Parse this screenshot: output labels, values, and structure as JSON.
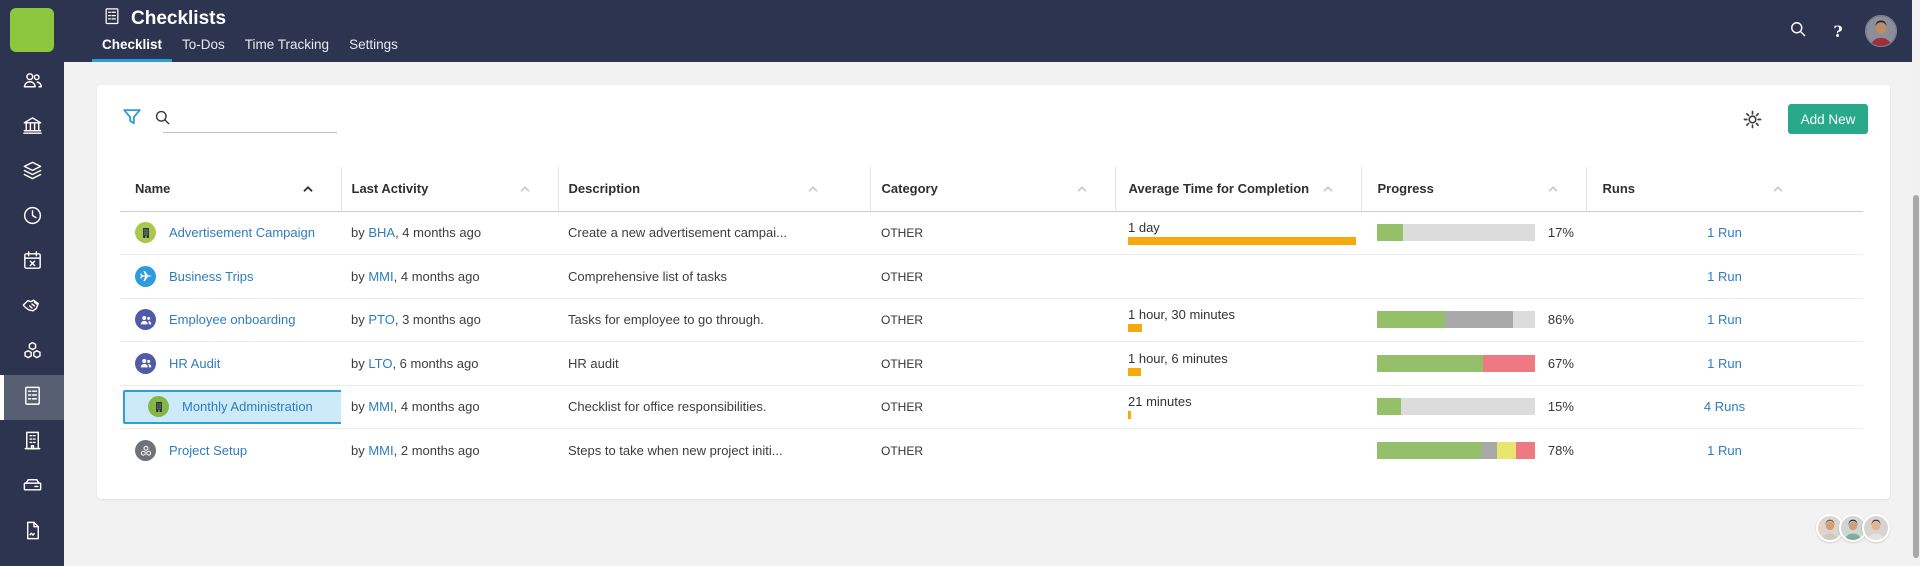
{
  "header": {
    "title": "Checklists",
    "title_icon": "checklists",
    "tabs": [
      {
        "label": "Checklist",
        "active": true
      },
      {
        "label": "To-Dos",
        "active": false
      },
      {
        "label": "Time Tracking",
        "active": false
      },
      {
        "label": "Settings",
        "active": false
      }
    ],
    "action_icons": [
      "search-icon",
      "help-icon",
      "user-avatar"
    ]
  },
  "sidebar": {
    "logo_icon": "sunrise-logo",
    "items": [
      {
        "icon": "users",
        "active": false
      },
      {
        "icon": "bank",
        "active": false
      },
      {
        "icon": "layers",
        "active": false
      },
      {
        "icon": "clock",
        "active": false
      },
      {
        "icon": "calendar-x",
        "active": false
      },
      {
        "icon": "handshake",
        "active": false
      },
      {
        "icon": "cubes",
        "active": false
      },
      {
        "icon": "checklists",
        "active": true
      },
      {
        "icon": "building",
        "active": false
      },
      {
        "icon": "drive",
        "active": false
      },
      {
        "icon": "document",
        "active": false
      }
    ]
  },
  "toolbar": {
    "filter_icon": "filter",
    "search_value": "",
    "search_placeholder": "",
    "settings_icon": "gear",
    "add_new_label": "Add New"
  },
  "table": {
    "columns": [
      {
        "label": "Name",
        "sorted": true
      },
      {
        "label": "Last Activity",
        "sorted": false
      },
      {
        "label": "Description",
        "sorted": false
      },
      {
        "label": "Category",
        "sorted": false
      },
      {
        "label": "Average Time for Completion",
        "sorted": false
      },
      {
        "label": "Progress",
        "sorted": false
      },
      {
        "label": "Runs",
        "sorted": false
      }
    ],
    "rows": [
      {
        "name": "Advertisement Campaign",
        "icon": "building-badge",
        "icon_bg": "#a9c74c",
        "activity_prefix": "by ",
        "activity_user": "BHA",
        "activity_suffix": ", 4 months ago",
        "description": "Create a new advertisement campai...",
        "category": "OTHER",
        "avg_time": "1 day",
        "avg_time_bar_pct": 98,
        "progress_segments": [
          {
            "color": "green",
            "pct": 16.5
          }
        ],
        "progress_label": "17%",
        "runs": "1 Run",
        "selected": false
      },
      {
        "name": "Business Trips",
        "icon": "plane-badge",
        "icon_bg": "#2d9cdb",
        "activity_prefix": "by ",
        "activity_user": "MMI",
        "activity_suffix": ", 4 months ago",
        "description": "Comprehensive list of tasks",
        "category": "OTHER",
        "avg_time": "",
        "avg_time_bar_pct": 0,
        "progress_segments": [],
        "progress_label": "",
        "runs": "1 Run",
        "selected": false
      },
      {
        "name": "Employee onboarding",
        "icon": "people-badge",
        "icon_bg": "#4f5aa8",
        "activity_prefix": "by ",
        "activity_user": "PTO",
        "activity_suffix": ", 3 months ago",
        "description": "Tasks for employee to go through.",
        "category": "OTHER",
        "avg_time": "1 hour, 30 minutes",
        "avg_time_bar_pct": 6,
        "progress_segments": [
          {
            "color": "green",
            "pct": 43
          },
          {
            "color": "gray",
            "pct": 43
          }
        ],
        "progress_label": "86%",
        "runs": "1 Run",
        "selected": false
      },
      {
        "name": "HR Audit",
        "icon": "people-badge",
        "icon_bg": "#4f5aa8",
        "activity_prefix": "by ",
        "activity_user": "LTO",
        "activity_suffix": ", 6 months ago",
        "description": "HR audit",
        "category": "OTHER",
        "avg_time": "1 hour, 6 minutes",
        "avg_time_bar_pct": 5.4,
        "progress_segments": [
          {
            "color": "green",
            "pct": 67
          },
          {
            "color": "red",
            "pct": 33
          }
        ],
        "progress_label": "67%",
        "runs": "1 Run",
        "selected": false
      },
      {
        "name": "Monthly Administration",
        "icon": "building-badge",
        "icon_bg": "#85b544",
        "activity_prefix": "by ",
        "activity_user": "MMI",
        "activity_suffix": ", 4 months ago",
        "description": "Checklist for office responsibilities.",
        "category": "OTHER",
        "avg_time": "21 minutes",
        "avg_time_bar_pct": 1.5,
        "progress_segments": [
          {
            "color": "green",
            "pct": 15
          }
        ],
        "progress_label": "15%",
        "runs": "4 Runs",
        "selected": true
      },
      {
        "name": "Project Setup",
        "icon": "cubes-badge",
        "icon_bg": "#6e7379",
        "activity_prefix": "by ",
        "activity_user": "MMI",
        "activity_suffix": ", 2 months ago",
        "description": "Steps to take when new project initi...",
        "category": "OTHER",
        "avg_time": "",
        "avg_time_bar_pct": 0,
        "progress_segments": [
          {
            "color": "green",
            "pct": 66
          },
          {
            "color": "gray",
            "pct": 10
          },
          {
            "color": "yellow",
            "pct": 12
          },
          {
            "color": "red",
            "pct": 12
          }
        ],
        "progress_label": "78%",
        "runs": "1 Run",
        "selected": false
      }
    ]
  },
  "footer": {
    "team_avatars": [
      "bearded-man-avatar",
      "dark-haired-man-avatar",
      "woman-avatar"
    ]
  },
  "colors": {
    "navy": "#2d3450",
    "accent_blue": "#2d9cdb",
    "link_blue": "#2e7cc0",
    "teal_button": "#27a98a",
    "orange_bar": "#f7a80d",
    "progress": {
      "green": "#94c069",
      "gray": "#a9a9a9",
      "yellow": "#e9e66e",
      "red": "#ee7983",
      "track": "#dcdcdc"
    },
    "selected_border": "#2f9ed9",
    "selected_bg": "#cdeaf9"
  }
}
